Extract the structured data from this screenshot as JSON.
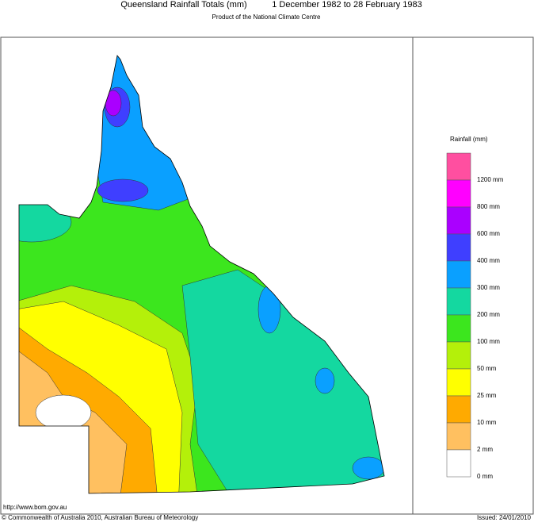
{
  "header": {
    "title": "Queensland Rainfall Totals (mm)",
    "period": "1 December 1982 to 28 February 1983",
    "subtitle": "Product of the National Climate Centre"
  },
  "legend": {
    "title": "Rainfall (mm)",
    "colors": [
      "#ff4fa0",
      "#ff00ff",
      "#aa00ff",
      "#3f3fff",
      "#0aa0ff",
      "#14d8a0",
      "#3ce61e",
      "#b4f00a",
      "#ffff00",
      "#ffaa00",
      "#ffc060",
      "#ffffff"
    ],
    "labels": [
      "1200 mm",
      "800 mm",
      "600 mm",
      "400 mm",
      "300 mm",
      "200 mm",
      "100 mm",
      "50 mm",
      "25 mm",
      "10 mm",
      "2 mm",
      "0 mm"
    ]
  },
  "footer": {
    "url": "http://www.bom.gov.au",
    "copyright": "© Commonwealth of Australia 2010, Australian Bureau of Meteorology",
    "issued": "Issued: 24/01/2010"
  }
}
